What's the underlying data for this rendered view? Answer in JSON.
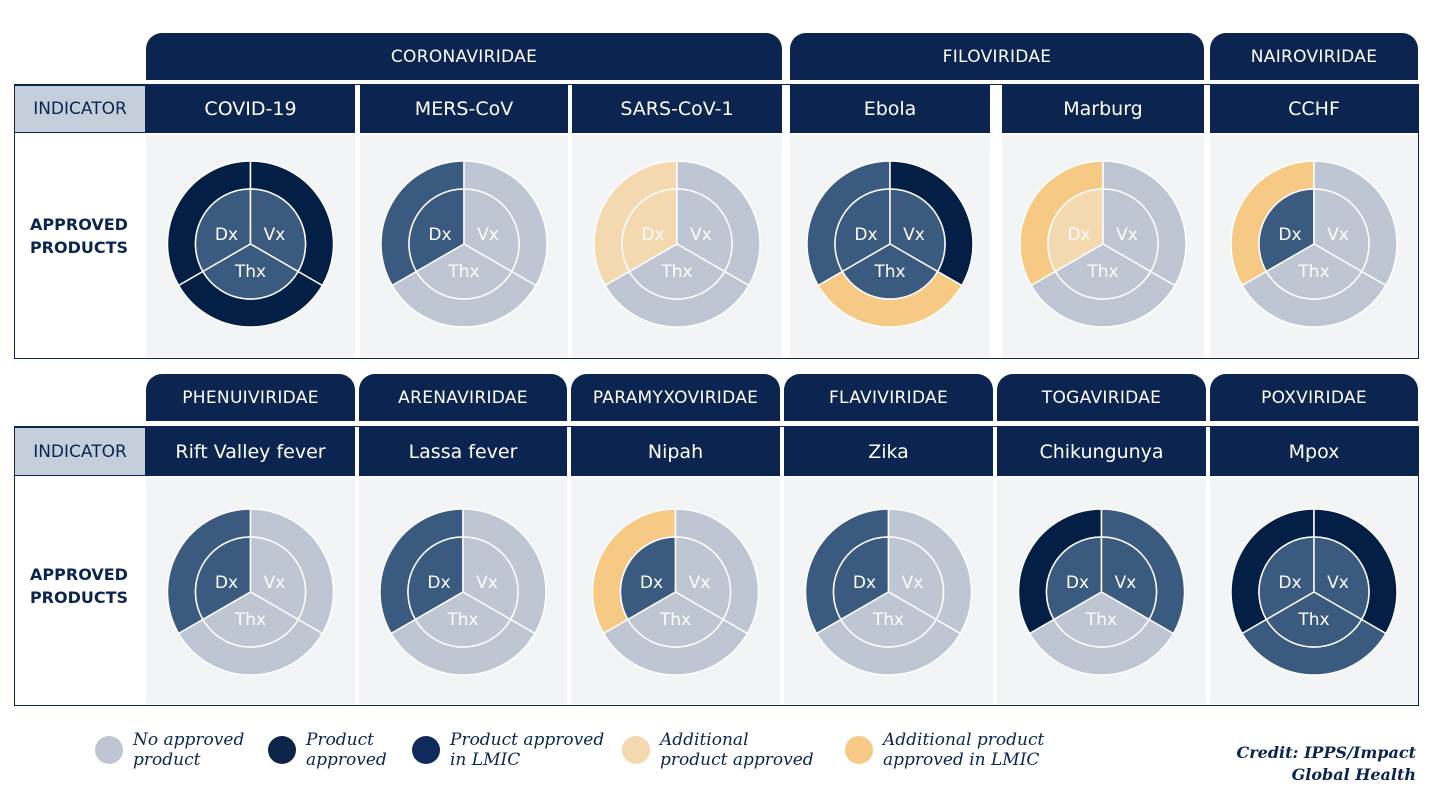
{
  "colors": {
    "none": "#bdc6d2",
    "approved": "#3b5a80",
    "lmic": "#031f45",
    "additional": "#f4d8b0",
    "additional_lmic": "#f6c985"
  },
  "indicator_label": "INDICATOR",
  "row_label_line1": "APPROVED",
  "row_label_line2": "PRODUCTS",
  "segment_labels": {
    "dx": "Dx",
    "vx": "Vx",
    "thx": "Thx"
  },
  "rows": [
    {
      "families": [
        "CORONAVIRIDAE",
        "FILOVIRIDAE",
        "NAIROVIRIDAE"
      ],
      "diseases": [
        {
          "name": "COVID-19",
          "dx": [
            "approved",
            "lmic"
          ],
          "vx": [
            "approved",
            "lmic"
          ],
          "thx": [
            "approved",
            "lmic"
          ]
        },
        {
          "name": "MERS-CoV",
          "dx": [
            "approved",
            "approved"
          ],
          "vx": [
            "none",
            "none"
          ],
          "thx": [
            "none",
            "none"
          ]
        },
        {
          "name": "SARS-CoV-1",
          "dx": [
            "additional",
            "additional"
          ],
          "vx": [
            "none",
            "none"
          ],
          "thx": [
            "none",
            "none"
          ]
        },
        {
          "name": "Ebola",
          "dx": [
            "approved",
            "approved"
          ],
          "vx": [
            "approved",
            "lmic"
          ],
          "thx": [
            "approved",
            "additional_lmic"
          ]
        },
        {
          "name": "Marburg",
          "dx": [
            "additional",
            "additional_lmic"
          ],
          "vx": [
            "none",
            "none"
          ],
          "thx": [
            "none",
            "none"
          ]
        },
        {
          "name": "CCHF",
          "dx": [
            "approved",
            "additional_lmic"
          ],
          "vx": [
            "none",
            "none"
          ],
          "thx": [
            "none",
            "none"
          ]
        }
      ]
    },
    {
      "families": [
        "PHENUIVIRIDAE",
        "ARENAVIRIDAE",
        "PARAMYXOVIRIDAE",
        "FLAVIVIRIDAE",
        "TOGAVIRIDAE",
        "POXVIRIDAE"
      ],
      "diseases": [
        {
          "name": "Rift Valley fever",
          "dx": [
            "approved",
            "approved"
          ],
          "vx": [
            "none",
            "none"
          ],
          "thx": [
            "none",
            "none"
          ]
        },
        {
          "name": "Lassa fever",
          "dx": [
            "approved",
            "approved"
          ],
          "vx": [
            "none",
            "none"
          ],
          "thx": [
            "none",
            "none"
          ]
        },
        {
          "name": "Nipah",
          "dx": [
            "approved",
            "additional_lmic"
          ],
          "vx": [
            "none",
            "none"
          ],
          "thx": [
            "none",
            "none"
          ]
        },
        {
          "name": "Zika",
          "dx": [
            "approved",
            "approved"
          ],
          "vx": [
            "none",
            "none"
          ],
          "thx": [
            "none",
            "none"
          ]
        },
        {
          "name": "Chikungunya",
          "dx": [
            "approved",
            "lmic"
          ],
          "vx": [
            "approved",
            "approved"
          ],
          "thx": [
            "none",
            "none"
          ]
        },
        {
          "name": "Mpox",
          "dx": [
            "approved",
            "lmic"
          ],
          "vx": [
            "approved",
            "lmic"
          ],
          "thx": [
            "approved",
            "approved"
          ]
        }
      ]
    }
  ],
  "legend": [
    {
      "label1": "No approved",
      "label2": "product",
      "color": "#bdc6d2"
    },
    {
      "label1": "Product",
      "label2": "approved",
      "color": "#0c2447"
    },
    {
      "label1": "Product approved",
      "label2": "in LMIC",
      "color": "#0f2a5c"
    },
    {
      "label1": "Additional",
      "label2": "product approved",
      "color": "#f4d8b0"
    },
    {
      "label1": "Additional product",
      "label2": "approved in LMIC",
      "color": "#f6c985"
    }
  ],
  "credit_line1": "Credit: IPPS/Impact",
  "credit_line2": "Global Health"
}
